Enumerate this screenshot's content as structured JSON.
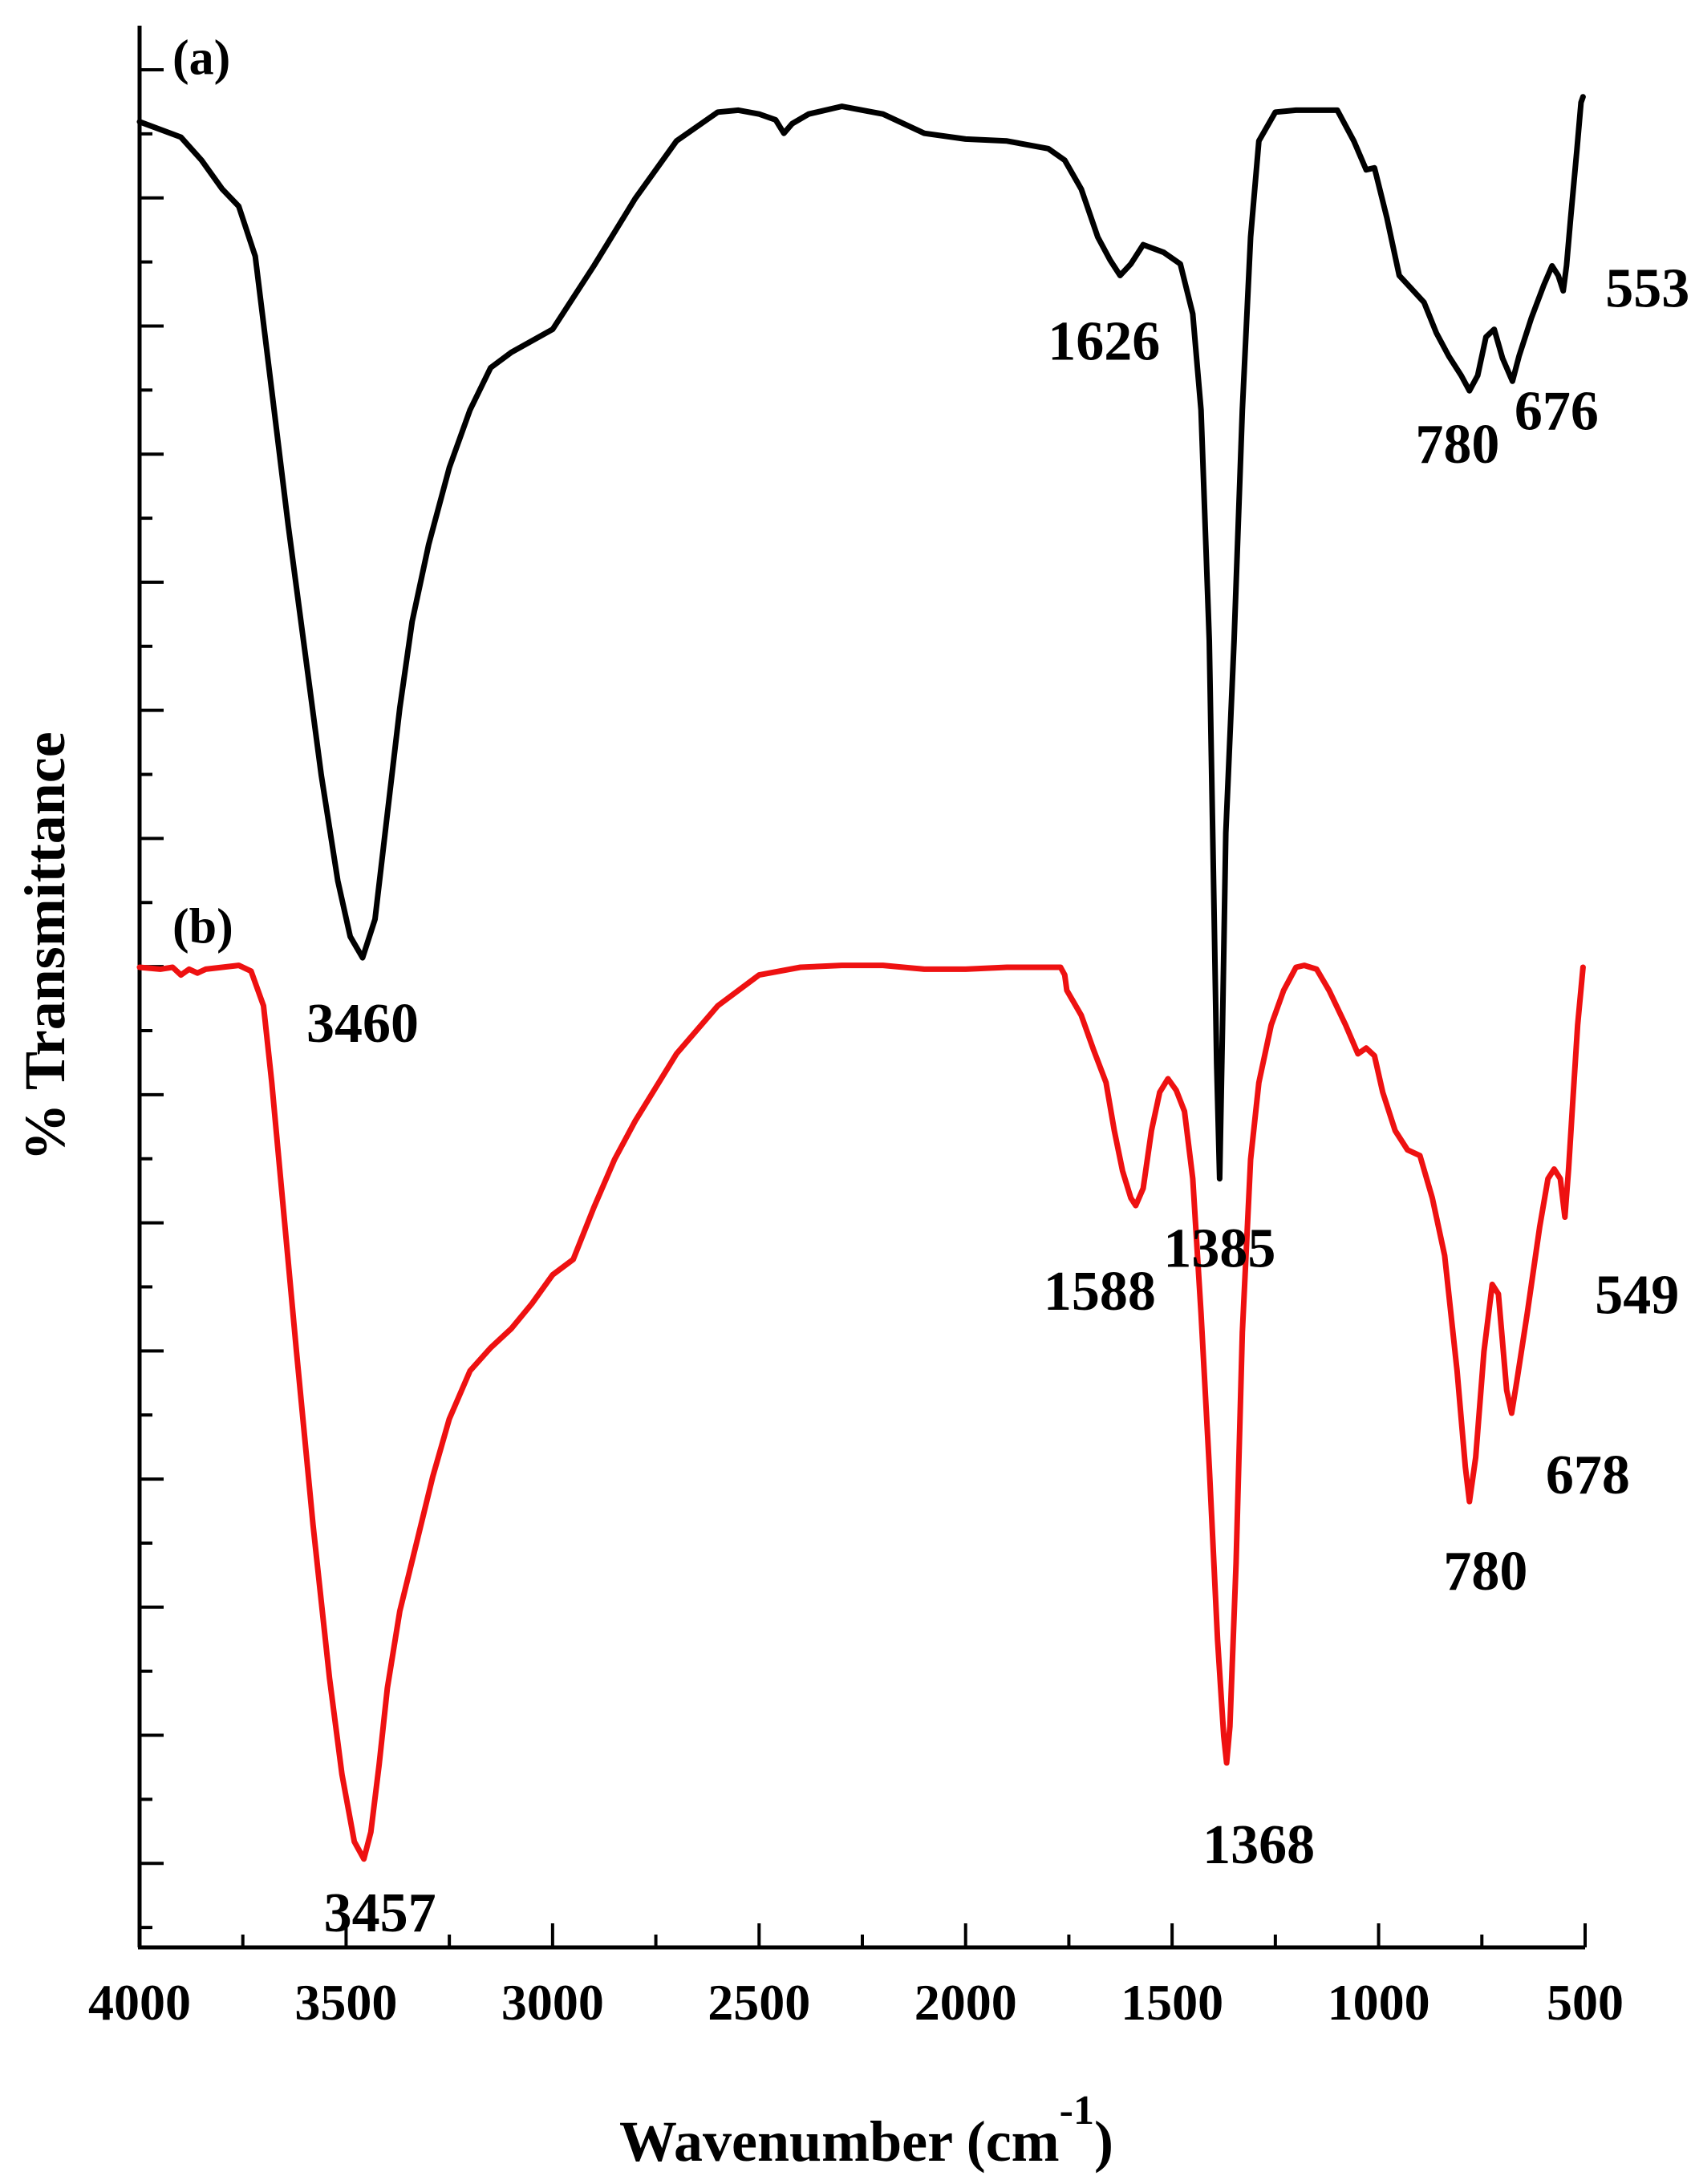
{
  "chart_data": {
    "type": "line",
    "xlabel": "Wavenumber (cm",
    "xlabel_superscript": "-1",
    "xlabel_suffix": ")",
    "ylabel": "% Transmittance",
    "xlim": [
      4000,
      500
    ],
    "x_reversed": true,
    "x_ticks": [
      4000,
      3500,
      3000,
      2500,
      2000,
      1500,
      1000,
      500
    ],
    "y_tick_labels_shown": false,
    "grid": false,
    "series": [
      {
        "id": "a",
        "panel_label": "(a)",
        "color": "#000000",
        "points": [
          [
            4000,
            95.0
          ],
          [
            3900,
            94.2
          ],
          [
            3850,
            93.0
          ],
          [
            3800,
            91.5
          ],
          [
            3760,
            90.6
          ],
          [
            3720,
            88.0
          ],
          [
            3680,
            81.0
          ],
          [
            3640,
            74.0
          ],
          [
            3600,
            67.5
          ],
          [
            3560,
            61.0
          ],
          [
            3520,
            55.5
          ],
          [
            3490,
            52.6
          ],
          [
            3460,
            51.5
          ],
          [
            3430,
            53.5
          ],
          [
            3400,
            59.0
          ],
          [
            3370,
            64.5
          ],
          [
            3340,
            69.0
          ],
          [
            3300,
            73.0
          ],
          [
            3250,
            77.0
          ],
          [
            3200,
            80.0
          ],
          [
            3150,
            82.2
          ],
          [
            3100,
            83.0
          ],
          [
            3000,
            84.2
          ],
          [
            2900,
            87.5
          ],
          [
            2800,
            91.0
          ],
          [
            2700,
            94.0
          ],
          [
            2600,
            95.5
          ],
          [
            2550,
            95.6
          ],
          [
            2500,
            95.4
          ],
          [
            2460,
            95.1
          ],
          [
            2440,
            94.4
          ],
          [
            2420,
            94.9
          ],
          [
            2380,
            95.4
          ],
          [
            2300,
            95.8
          ],
          [
            2200,
            95.4
          ],
          [
            2100,
            94.4
          ],
          [
            2000,
            94.1
          ],
          [
            1900,
            94.0
          ],
          [
            1800,
            93.6
          ],
          [
            1760,
            93.0
          ],
          [
            1720,
            91.5
          ],
          [
            1680,
            89.0
          ],
          [
            1650,
            87.8
          ],
          [
            1626,
            87.0
          ],
          [
            1600,
            87.6
          ],
          [
            1570,
            88.6
          ],
          [
            1520,
            88.2
          ],
          [
            1480,
            87.6
          ],
          [
            1450,
            85.0
          ],
          [
            1430,
            80.0
          ],
          [
            1410,
            68.0
          ],
          [
            1400,
            56.0
          ],
          [
            1392,
            46.0
          ],
          [
            1385,
            40.0
          ],
          [
            1378,
            48.0
          ],
          [
            1370,
            58.0
          ],
          [
            1350,
            68.0
          ],
          [
            1330,
            80.0
          ],
          [
            1310,
            89.0
          ],
          [
            1290,
            94.0
          ],
          [
            1250,
            95.5
          ],
          [
            1200,
            95.6
          ],
          [
            1150,
            95.6
          ],
          [
            1100,
            95.6
          ],
          [
            1060,
            94.0
          ],
          [
            1030,
            92.5
          ],
          [
            1010,
            92.6
          ],
          [
            980,
            90.0
          ],
          [
            950,
            87.0
          ],
          [
            920,
            86.3
          ],
          [
            890,
            85.6
          ],
          [
            860,
            84.0
          ],
          [
            830,
            82.8
          ],
          [
            800,
            81.8
          ],
          [
            780,
            81.0
          ],
          [
            760,
            81.8
          ],
          [
            740,
            83.8
          ],
          [
            720,
            84.2
          ],
          [
            700,
            82.7
          ],
          [
            676,
            81.5
          ],
          [
            660,
            82.8
          ],
          [
            630,
            84.8
          ],
          [
            600,
            86.5
          ],
          [
            580,
            87.5
          ],
          [
            565,
            87.0
          ],
          [
            553,
            86.2
          ],
          [
            545,
            87.5
          ],
          [
            535,
            90.0
          ],
          [
            520,
            93.5
          ],
          [
            510,
            96.0
          ],
          [
            505,
            96.3
          ]
        ]
      },
      {
        "id": "b",
        "panel_label": "(b)",
        "color": "#ee1111",
        "points": [
          [
            4000,
            51.0
          ],
          [
            3950,
            50.9
          ],
          [
            3920,
            51.0
          ],
          [
            3900,
            50.6
          ],
          [
            3880,
            50.9
          ],
          [
            3860,
            50.7
          ],
          [
            3840,
            50.9
          ],
          [
            3800,
            51.0
          ],
          [
            3760,
            51.1
          ],
          [
            3730,
            50.8
          ],
          [
            3700,
            49.0
          ],
          [
            3680,
            45.0
          ],
          [
            3650,
            38.0
          ],
          [
            3620,
            31.0
          ],
          [
            3580,
            22.0
          ],
          [
            3540,
            14.0
          ],
          [
            3510,
            9.0
          ],
          [
            3480,
            5.5
          ],
          [
            3457,
            4.6
          ],
          [
            3440,
            6.0
          ],
          [
            3420,
            9.5
          ],
          [
            3400,
            13.5
          ],
          [
            3370,
            17.5
          ],
          [
            3330,
            21.0
          ],
          [
            3290,
            24.5
          ],
          [
            3250,
            27.5
          ],
          [
            3200,
            30.0
          ],
          [
            3150,
            31.2
          ],
          [
            3100,
            32.2
          ],
          [
            3050,
            33.5
          ],
          [
            3000,
            35.0
          ],
          [
            2950,
            35.8
          ],
          [
            2900,
            38.5
          ],
          [
            2850,
            41.0
          ],
          [
            2800,
            43.0
          ],
          [
            2700,
            46.5
          ],
          [
            2600,
            49.0
          ],
          [
            2500,
            50.6
          ],
          [
            2400,
            51.0
          ],
          [
            2300,
            51.1
          ],
          [
            2200,
            51.1
          ],
          [
            2100,
            50.9
          ],
          [
            2000,
            50.9
          ],
          [
            1900,
            51.0
          ],
          [
            1800,
            51.0
          ],
          [
            1770,
            51.0
          ],
          [
            1760,
            50.6
          ],
          [
            1755,
            49.8
          ],
          [
            1720,
            48.5
          ],
          [
            1690,
            46.7
          ],
          [
            1660,
            45.0
          ],
          [
            1640,
            42.5
          ],
          [
            1620,
            40.4
          ],
          [
            1600,
            39.0
          ],
          [
            1588,
            38.6
          ],
          [
            1570,
            39.5
          ],
          [
            1550,
            42.5
          ],
          [
            1530,
            44.5
          ],
          [
            1510,
            45.2
          ],
          [
            1490,
            44.6
          ],
          [
            1470,
            43.5
          ],
          [
            1450,
            40.0
          ],
          [
            1430,
            33.0
          ],
          [
            1410,
            25.0
          ],
          [
            1390,
            16.0
          ],
          [
            1375,
            11.0
          ],
          [
            1368,
            9.6
          ],
          [
            1360,
            11.5
          ],
          [
            1345,
            20.0
          ],
          [
            1330,
            32.0
          ],
          [
            1310,
            41.0
          ],
          [
            1290,
            45.0
          ],
          [
            1260,
            48.0
          ],
          [
            1230,
            49.8
          ],
          [
            1200,
            51.0
          ],
          [
            1180,
            51.1
          ],
          [
            1150,
            50.9
          ],
          [
            1120,
            49.8
          ],
          [
            1080,
            48.0
          ],
          [
            1050,
            46.5
          ],
          [
            1030,
            46.8
          ],
          [
            1010,
            46.4
          ],
          [
            990,
            44.5
          ],
          [
            960,
            42.5
          ],
          [
            930,
            41.5
          ],
          [
            900,
            41.2
          ],
          [
            870,
            39.0
          ],
          [
            840,
            36.0
          ],
          [
            810,
            30.0
          ],
          [
            790,
            25.0
          ],
          [
            780,
            23.2
          ],
          [
            765,
            25.5
          ],
          [
            745,
            31.0
          ],
          [
            725,
            34.5
          ],
          [
            710,
            34.0
          ],
          [
            690,
            29.0
          ],
          [
            678,
            27.8
          ],
          [
            665,
            29.5
          ],
          [
            640,
            33.0
          ],
          [
            610,
            37.5
          ],
          [
            590,
            40.0
          ],
          [
            575,
            40.5
          ],
          [
            560,
            40.0
          ],
          [
            549,
            38.0
          ],
          [
            540,
            40.5
          ],
          [
            530,
            44.0
          ],
          [
            518,
            48.0
          ],
          [
            505,
            51.0
          ]
        ]
      }
    ],
    "ylim": [
      0,
      100
    ],
    "annotations": [
      {
        "text": "3460",
        "x": 3460,
        "y": 51.5,
        "series": "a"
      },
      {
        "text": "1626",
        "x": 1626,
        "y": 87.0,
        "series": "a"
      },
      {
        "text": "1385",
        "x": 1385,
        "y": 40.0,
        "series": "a"
      },
      {
        "text": "780",
        "x": 780,
        "y": 81.0,
        "series": "a"
      },
      {
        "text": "676",
        "x": 676,
        "y": 81.5,
        "series": "a"
      },
      {
        "text": "553",
        "x": 553,
        "y": 86.2,
        "series": "a"
      },
      {
        "text": "3457",
        "x": 3457,
        "y": 4.6,
        "series": "b"
      },
      {
        "text": "1588",
        "x": 1588,
        "y": 38.6,
        "series": "b"
      },
      {
        "text": "1368",
        "x": 1368,
        "y": 9.6,
        "series": "b"
      },
      {
        "text": "780",
        "x": 780,
        "y": 23.2,
        "series": "b"
      },
      {
        "text": "678",
        "x": 678,
        "y": 27.8,
        "series": "b"
      },
      {
        "text": "549",
        "x": 549,
        "y": 38.0,
        "series": "b"
      }
    ]
  }
}
